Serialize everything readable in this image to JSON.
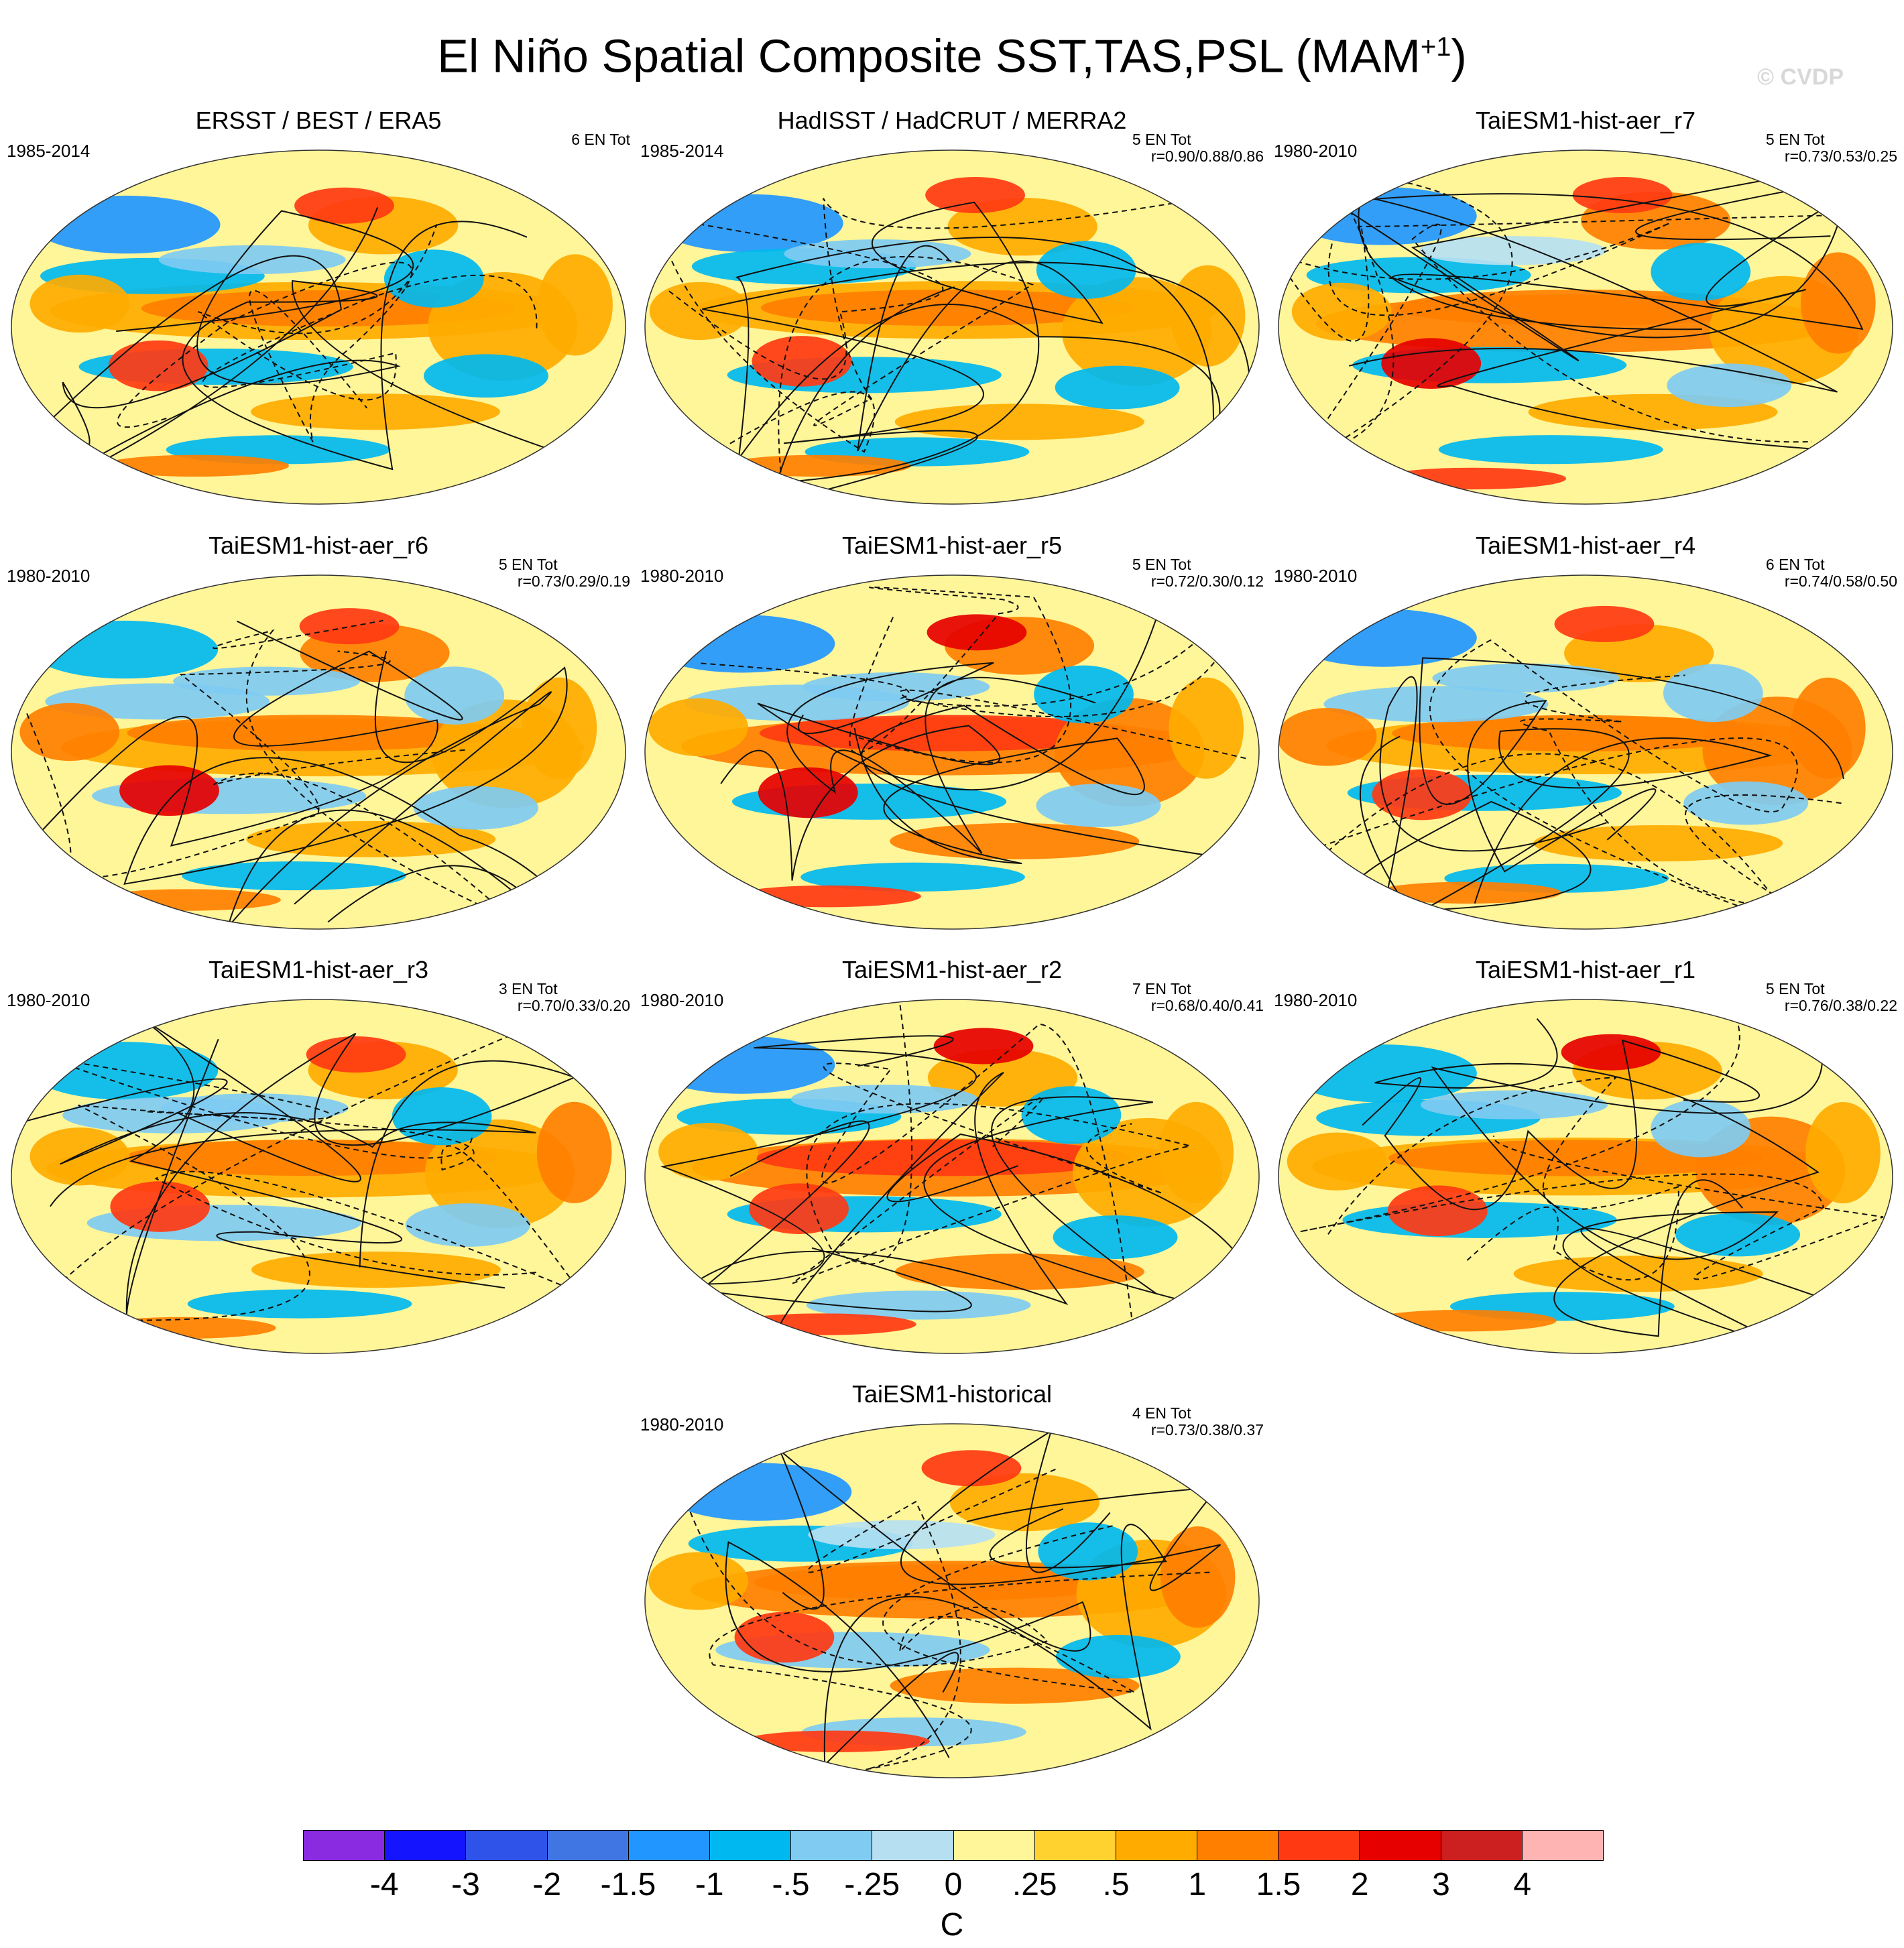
{
  "title": {
    "text": "El Niño Spatial Composite SST,TAS,PSL (MAM",
    "sup": "+1",
    "close": ")"
  },
  "watermark": "© CVDP",
  "panels": [
    {
      "title": "ERSST / BEST / ERA5",
      "period": "1985-2014",
      "en": "6 EN Tot",
      "r": ""
    },
    {
      "title": "HadISST / HadCRUT / MERRA2",
      "period": "1985-2014",
      "en": "5 EN Tot",
      "r": "r=0.90/0.88/0.86"
    },
    {
      "title": "TaiESM1-hist-aer_r7",
      "period": "1980-2010",
      "en": "5 EN Tot",
      "r": "r=0.73/0.53/0.25"
    },
    {
      "title": "TaiESM1-hist-aer_r6",
      "period": "1980-2010",
      "en": "5 EN Tot",
      "r": "r=0.73/0.29/0.19"
    },
    {
      "title": "TaiESM1-hist-aer_r5",
      "period": "1980-2010",
      "en": "5 EN Tot",
      "r": "r=0.72/0.30/0.12"
    },
    {
      "title": "TaiESM1-hist-aer_r4",
      "period": "1980-2010",
      "en": "6 EN Tot",
      "r": "r=0.74/0.58/0.50"
    },
    {
      "title": "TaiESM1-hist-aer_r3",
      "period": "1980-2010",
      "en": "3 EN Tot",
      "r": "r=0.70/0.33/0.20"
    },
    {
      "title": "TaiESM1-hist-aer_r2",
      "period": "1980-2010",
      "en": "7 EN Tot",
      "r": "r=0.68/0.40/0.41"
    },
    {
      "title": "TaiESM1-hist-aer_r1",
      "period": "1980-2010",
      "en": "5 EN Tot",
      "r": "r=0.76/0.38/0.22"
    },
    {
      "title": "TaiESM1-historical",
      "period": "1980-2010",
      "en": "4 EN Tot",
      "r": "r=0.73/0.38/0.37"
    }
  ],
  "colorbar": {
    "unit": "C",
    "labels": [
      "-4",
      "-3",
      "-2",
      "-1.5",
      "-1",
      "-.5",
      "-.25",
      "0",
      ".25",
      ".5",
      "1",
      "1.5",
      "2",
      "3",
      "4"
    ],
    "colors": [
      "#8a2be2",
      "#1414ff",
      "#2f52e8",
      "#3f76e4",
      "#2196ff",
      "#00b8f0",
      "#7fcbf2",
      "#b6dff2",
      "#fff599",
      "#ffd230",
      "#ffab00",
      "#ff7f00",
      "#ff3a12",
      "#e60000",
      "#cc2020",
      "#ffb4b4"
    ]
  }
}
